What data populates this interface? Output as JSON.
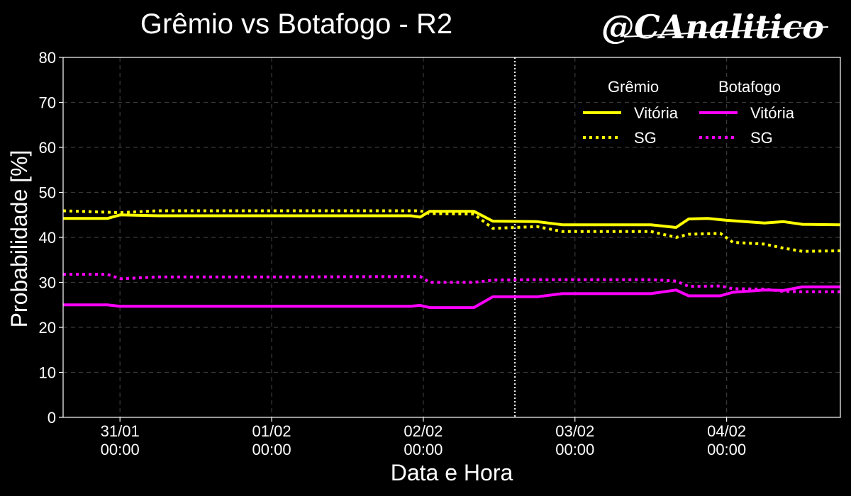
{
  "title": "Grêmio vs Botafogo - R2",
  "watermark": "@CAnalitico",
  "chart_data": {
    "type": "line",
    "xlabel": "Data e Hora",
    "ylabel": "Probabilidade [%]",
    "ylim": [
      0,
      80
    ],
    "yticks": [
      0,
      10,
      20,
      30,
      40,
      50,
      60,
      70,
      80
    ],
    "xlim": [
      "2025-01-30T15:00",
      "2025-02-04T18:00"
    ],
    "xticks": [
      {
        "t": "2025-01-31T00:00",
        "label1": "31/01",
        "label2": "00:00"
      },
      {
        "t": "2025-02-01T00:00",
        "label1": "01/02",
        "label2": "00:00"
      },
      {
        "t": "2025-02-02T00:00",
        "label1": "02/02",
        "label2": "00:00"
      },
      {
        "t": "2025-02-03T00:00",
        "label1": "03/02",
        "label2": "00:00"
      },
      {
        "t": "2025-02-04T00:00",
        "label1": "04/02",
        "label2": "00:00"
      }
    ],
    "grid": true,
    "vline": "2025-02-02T14:30",
    "legend": {
      "placement": "top-right",
      "groups": [
        {
          "team": "Grêmio",
          "entries": [
            {
              "label": "Vitória",
              "series": 0
            },
            {
              "label": "SG",
              "series": 1
            }
          ]
        },
        {
          "team": "Botafogo",
          "entries": [
            {
              "label": "Vitória",
              "series": 2
            },
            {
              "label": "SG",
              "series": 3
            }
          ]
        }
      ]
    },
    "series": [
      {
        "name": "Grêmio Vitória",
        "color": "#ffff00",
        "style": "solid",
        "x": [
          "2025-01-30T15:00",
          "2025-01-30T22:00",
          "2025-01-31T00:00",
          "2025-01-31T06:00",
          "2025-02-01T00:00",
          "2025-02-01T22:00",
          "2025-02-01T23:30",
          "2025-02-02T01:00",
          "2025-02-02T08:00",
          "2025-02-02T11:00",
          "2025-02-02T18:00",
          "2025-02-02T22:00",
          "2025-02-03T00:00",
          "2025-02-03T12:00",
          "2025-02-03T16:00",
          "2025-02-03T18:00",
          "2025-02-03T21:00",
          "2025-02-04T00:00",
          "2025-02-04T06:00",
          "2025-02-04T09:00",
          "2025-02-04T12:00",
          "2025-02-04T18:00"
        ],
        "y": [
          44.2,
          44.2,
          45.0,
          44.8,
          44.8,
          44.8,
          44.5,
          45.8,
          45.8,
          43.6,
          43.5,
          42.8,
          42.8,
          42.8,
          42.2,
          44.1,
          44.2,
          43.8,
          43.2,
          43.5,
          42.9,
          42.8
        ]
      },
      {
        "name": "Grêmio SG",
        "color": "#ffff00",
        "style": "dotted",
        "x": [
          "2025-01-30T15:00",
          "2025-01-31T00:00",
          "2025-01-31T06:00",
          "2025-02-01T00:00",
          "2025-02-01T23:30",
          "2025-02-02T01:00",
          "2025-02-02T08:00",
          "2025-02-02T11:00",
          "2025-02-02T18:00",
          "2025-02-02T22:00",
          "2025-02-03T12:00",
          "2025-02-03T16:00",
          "2025-02-03T18:00",
          "2025-02-03T23:00",
          "2025-02-04T01:00",
          "2025-02-04T06:00",
          "2025-02-04T09:00",
          "2025-02-04T12:00",
          "2025-02-04T18:00"
        ],
        "y": [
          45.9,
          45.5,
          45.9,
          45.9,
          45.9,
          45.3,
          45.2,
          42.0,
          42.4,
          41.3,
          41.3,
          40.0,
          40.7,
          40.9,
          38.9,
          38.5,
          37.6,
          36.9,
          37.0
        ]
      },
      {
        "name": "Botafogo Vitória",
        "color": "#ff00ff",
        "style": "solid",
        "x": [
          "2025-01-30T15:00",
          "2025-01-30T22:00",
          "2025-01-31T00:00",
          "2025-02-01T00:00",
          "2025-02-01T22:00",
          "2025-02-01T23:30",
          "2025-02-02T01:00",
          "2025-02-02T08:00",
          "2025-02-02T11:00",
          "2025-02-02T18:00",
          "2025-02-02T22:00",
          "2025-02-03T12:00",
          "2025-02-03T16:00",
          "2025-02-03T18:00",
          "2025-02-03T23:00",
          "2025-02-04T01:00",
          "2025-02-04T06:00",
          "2025-02-04T09:00",
          "2025-02-04T12:00",
          "2025-02-04T18:00"
        ],
        "y": [
          25.0,
          25.0,
          24.7,
          24.7,
          24.7,
          24.9,
          24.4,
          24.4,
          26.8,
          26.8,
          27.5,
          27.5,
          28.3,
          27.0,
          27.0,
          27.8,
          28.3,
          28.2,
          29.0,
          29.0
        ]
      },
      {
        "name": "Botafogo SG",
        "color": "#ff00ff",
        "style": "dotted",
        "x": [
          "2025-01-30T15:00",
          "2025-01-30T22:00",
          "2025-01-31T00:00",
          "2025-01-31T06:00",
          "2025-02-01T00:00",
          "2025-02-01T23:30",
          "2025-02-02T01:00",
          "2025-02-02T08:00",
          "2025-02-02T11:00",
          "2025-02-02T18:00",
          "2025-02-03T12:00",
          "2025-02-03T16:00",
          "2025-02-03T18:00",
          "2025-02-03T23:00",
          "2025-02-04T01:00",
          "2025-02-04T06:00",
          "2025-02-04T09:00",
          "2025-02-04T12:00",
          "2025-02-04T18:00"
        ],
        "y": [
          31.8,
          31.8,
          30.8,
          31.2,
          31.2,
          31.3,
          30.0,
          30.0,
          30.5,
          30.6,
          30.6,
          30.3,
          29.1,
          29.2,
          28.6,
          28.5,
          28.0,
          27.9,
          27.9
        ]
      }
    ]
  }
}
